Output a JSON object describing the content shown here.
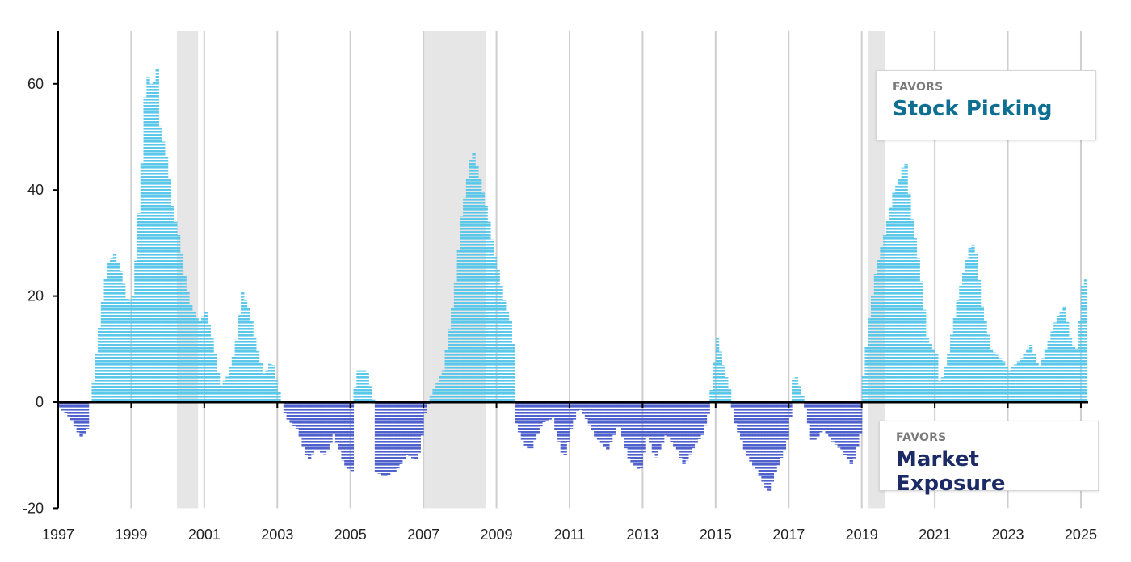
{
  "colors": {
    "positive": "#5bc8ea",
    "negative": "#4f61cc",
    "shade": "#e6e6e6",
    "gridline": "#cfcfcf",
    "axis": "#000000",
    "favor_label": "#7a7a7a",
    "stock_picking": "#0e6f93",
    "market_exposure": "#1c2b66"
  },
  "callouts": {
    "top": {
      "small": "FAVORS",
      "big": "Stock Picking"
    },
    "bottom": {
      "small": "FAVORS",
      "big": "Market Exposure"
    }
  },
  "chart_data": {
    "type": "bar",
    "title": "",
    "xlabel": "",
    "ylabel": "",
    "xlim": [
      1997.0,
      2025.2
    ],
    "ylim": [
      -20,
      70
    ],
    "y_ticks": [
      -20,
      0,
      20,
      40,
      60
    ],
    "x_ticks": [
      1997,
      1999,
      2001,
      2003,
      2005,
      2007,
      2009,
      2011,
      2013,
      2015,
      2017,
      2019,
      2021,
      2023,
      2025
    ],
    "grid": "vertical",
    "bar_style": "monthly bars drawn as horizontal stripes",
    "shaded_periods": [
      [
        2000.25,
        2000.83
      ],
      [
        2007.0,
        2008.7
      ],
      [
        2019.17,
        2019.63
      ]
    ],
    "series_anchors": [
      [
        1997.0,
        -1
      ],
      [
        1997.3,
        -3
      ],
      [
        1997.6,
        -7
      ],
      [
        1997.75,
        -5
      ],
      [
        1997.83,
        0
      ],
      [
        1997.92,
        4
      ],
      [
        1998.0,
        9
      ],
      [
        1998.15,
        18
      ],
      [
        1998.3,
        26
      ],
      [
        1998.5,
        28
      ],
      [
        1998.7,
        24
      ],
      [
        1998.85,
        19
      ],
      [
        1999.0,
        20
      ],
      [
        1999.1,
        28
      ],
      [
        1999.25,
        45
      ],
      [
        1999.35,
        60
      ],
      [
        1999.45,
        62
      ],
      [
        1999.55,
        58
      ],
      [
        1999.65,
        65
      ],
      [
        1999.75,
        52
      ],
      [
        1999.95,
        45
      ],
      [
        2000.1,
        36
      ],
      [
        2000.3,
        30
      ],
      [
        2000.45,
        22
      ],
      [
        2000.6,
        18
      ],
      [
        2000.8,
        15
      ],
      [
        2001.0,
        17
      ],
      [
        2001.2,
        11
      ],
      [
        2001.4,
        3
      ],
      [
        2001.6,
        5
      ],
      [
        2001.8,
        10
      ],
      [
        2002.0,
        21
      ],
      [
        2002.2,
        17
      ],
      [
        2002.4,
        10
      ],
      [
        2002.6,
        5
      ],
      [
        2002.8,
        8
      ],
      [
        2003.0,
        2
      ],
      [
        2003.1,
        0
      ],
      [
        2003.2,
        -3
      ],
      [
        2003.5,
        -5
      ],
      [
        2003.8,
        -11
      ],
      [
        2004.0,
        -9
      ],
      [
        2004.3,
        -10
      ],
      [
        2004.5,
        -6
      ],
      [
        2004.8,
        -12
      ],
      [
        2005.0,
        -13
      ],
      [
        2005.1,
        6
      ],
      [
        2005.4,
        6
      ],
      [
        2005.6,
        0
      ],
      [
        2005.62,
        -13
      ],
      [
        2005.9,
        -14
      ],
      [
        2006.2,
        -13
      ],
      [
        2006.5,
        -10
      ],
      [
        2006.8,
        -11
      ],
      [
        2006.95,
        -5
      ],
      [
        2007.0,
        -2
      ],
      [
        2007.2,
        2
      ],
      [
        2007.5,
        6
      ],
      [
        2007.8,
        20
      ],
      [
        2008.0,
        35
      ],
      [
        2008.3,
        48
      ],
      [
        2008.5,
        42
      ],
      [
        2008.7,
        36
      ],
      [
        2008.9,
        28
      ],
      [
        2009.0,
        25
      ],
      [
        2009.2,
        18
      ],
      [
        2009.4,
        14
      ],
      [
        2009.5,
        -4
      ],
      [
        2009.7,
        -8
      ],
      [
        2009.9,
        -9
      ],
      [
        2010.2,
        -4
      ],
      [
        2010.5,
        -3
      ],
      [
        2010.8,
        -11
      ],
      [
        2011.0,
        -5
      ],
      [
        2011.2,
        -1
      ],
      [
        2011.4,
        -3
      ],
      [
        2011.7,
        -7
      ],
      [
        2012.0,
        -9
      ],
      [
        2012.3,
        -4
      ],
      [
        2012.6,
        -11
      ],
      [
        2012.9,
        -13
      ],
      [
        2013.1,
        -6
      ],
      [
        2013.3,
        -11
      ],
      [
        2013.6,
        -6
      ],
      [
        2013.9,
        -9
      ],
      [
        2014.1,
        -12
      ],
      [
        2014.3,
        -9
      ],
      [
        2014.6,
        -6
      ],
      [
        2014.8,
        -1
      ],
      [
        2014.85,
        4
      ],
      [
        2015.0,
        12
      ],
      [
        2015.2,
        6
      ],
      [
        2015.35,
        2
      ],
      [
        2015.45,
        -3
      ],
      [
        2015.8,
        -10
      ],
      [
        2016.1,
        -13
      ],
      [
        2016.4,
        -17
      ],
      [
        2016.6,
        -13
      ],
      [
        2016.9,
        -8
      ],
      [
        2017.0,
        -3
      ],
      [
        2017.1,
        6
      ],
      [
        2017.3,
        2
      ],
      [
        2017.45,
        -2
      ],
      [
        2017.6,
        -8
      ],
      [
        2017.9,
        -5
      ],
      [
        2018.1,
        -7
      ],
      [
        2018.4,
        -9
      ],
      [
        2018.7,
        -12
      ],
      [
        2018.95,
        -5
      ],
      [
        2019.0,
        5
      ],
      [
        2019.15,
        15
      ],
      [
        2019.35,
        25
      ],
      [
        2019.6,
        32
      ],
      [
        2019.85,
        40
      ],
      [
        2020.0,
        42
      ],
      [
        2020.15,
        46
      ],
      [
        2020.3,
        36
      ],
      [
        2020.55,
        25
      ],
      [
        2020.75,
        12
      ],
      [
        2021.0,
        9
      ],
      [
        2021.1,
        3
      ],
      [
        2021.3,
        8
      ],
      [
        2021.6,
        20
      ],
      [
        2021.9,
        29
      ],
      [
        2022.05,
        30
      ],
      [
        2022.25,
        18
      ],
      [
        2022.5,
        10
      ],
      [
        2022.8,
        8
      ],
      [
        2023.0,
        6
      ],
      [
        2023.3,
        8
      ],
      [
        2023.6,
        11
      ],
      [
        2023.8,
        6
      ],
      [
        2024.0,
        10
      ],
      [
        2024.3,
        16
      ],
      [
        2024.5,
        18
      ],
      [
        2024.7,
        11
      ],
      [
        2024.85,
        10
      ],
      [
        2025.0,
        22
      ],
      [
        2025.15,
        24
      ]
    ]
  }
}
